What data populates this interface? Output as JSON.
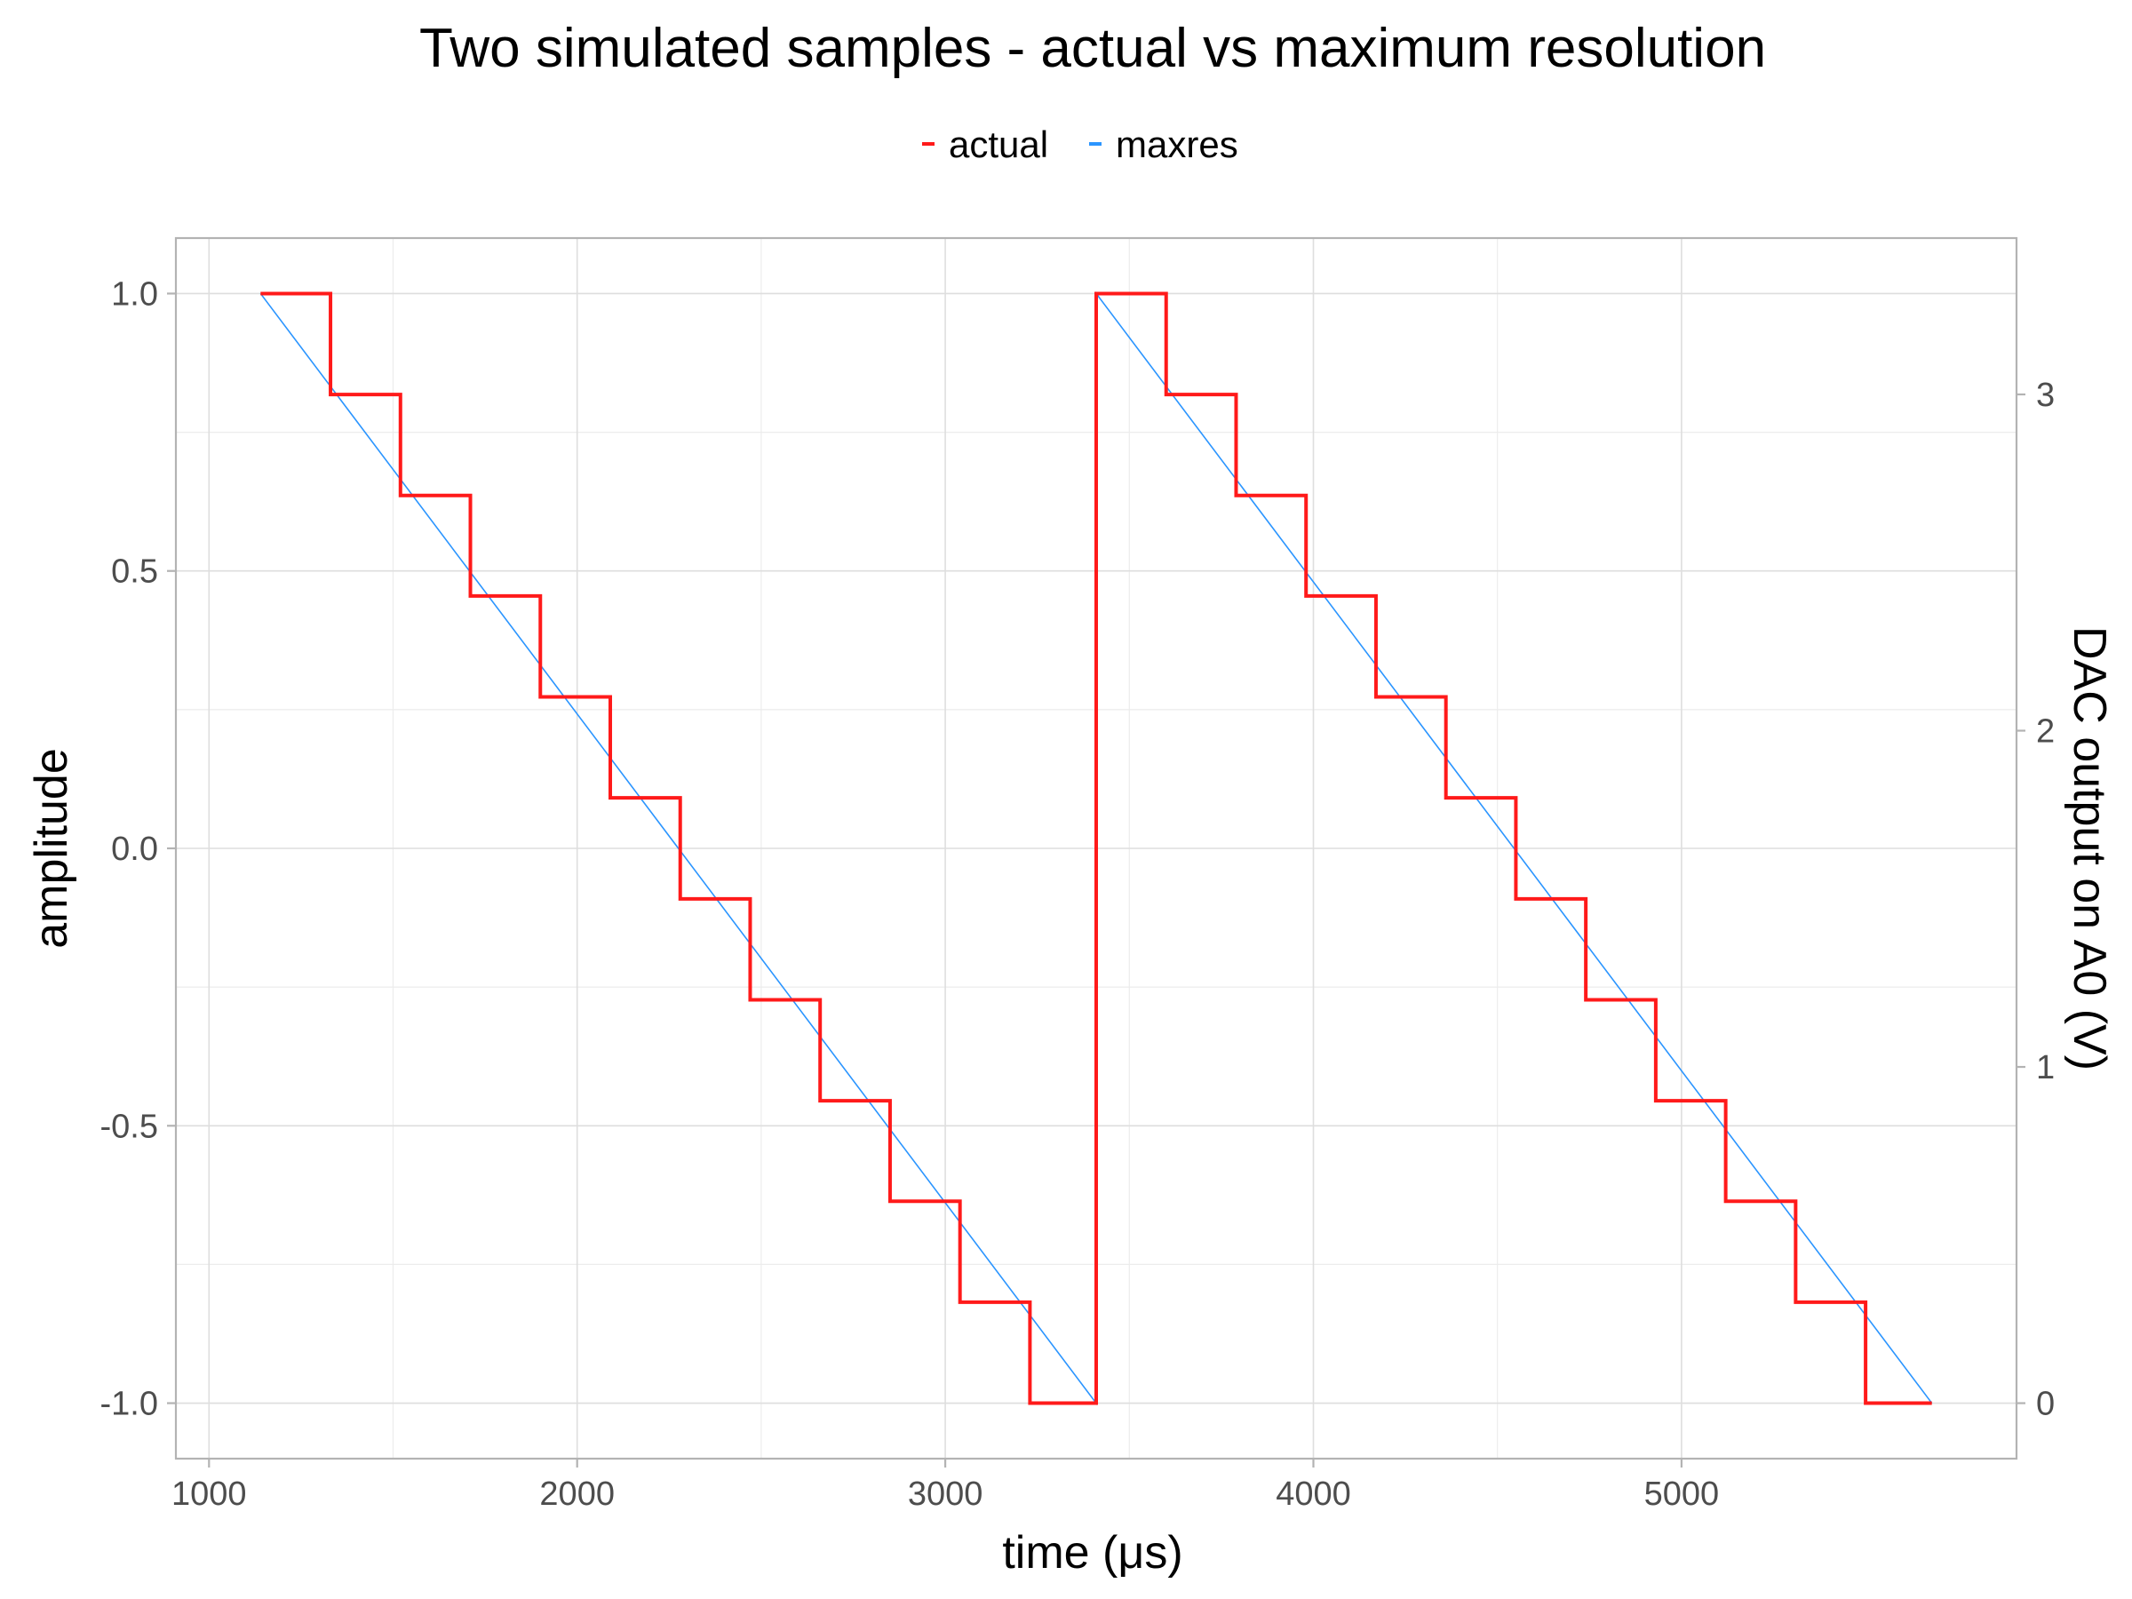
{
  "chart_data": {
    "type": "line",
    "title": "Two simulated samples - actual vs maximum resolution",
    "xlabel": "time (μs)",
    "ylabel": "amplitude",
    "ylabel_right": "DAC output on A0 (V)",
    "xlim": [
      910,
      5910
    ],
    "ylim": [
      -1.1,
      1.1
    ],
    "ylim_right_note": "secondary axis: V = 1.65 + 1.65 * amplitude",
    "x_ticks": [
      1000,
      2000,
      3000,
      4000,
      5000
    ],
    "x_tick_labels": [
      "1000",
      "2000",
      "3000",
      "4000",
      "5000"
    ],
    "y_ticks": [
      -1.0,
      -0.5,
      0.0,
      0.5,
      1.0
    ],
    "y_tick_labels": [
      "-1.0",
      "-0.5",
      "0.0",
      "0.5",
      "1.0"
    ],
    "y_right_ticks": [
      0,
      1,
      2,
      3
    ],
    "y_right_tick_labels": [
      "0",
      "1",
      "2",
      "3"
    ],
    "grid": true,
    "legend_position": "top",
    "series": [
      {
        "name": "actual",
        "color": "#ff1a1a",
        "shape": "step",
        "x": [
          1140,
          1330,
          1330,
          1520,
          1520,
          1710,
          1710,
          1900,
          1900,
          2090,
          2090,
          2280,
          2280,
          2470,
          2470,
          2660,
          2660,
          2850,
          2850,
          3040,
          3040,
          3230,
          3230,
          3410,
          3410,
          3600,
          3600,
          3790,
          3790,
          3980,
          3980,
          4170,
          4170,
          4360,
          4360,
          4550,
          4550,
          4740,
          4740,
          4930,
          4930,
          5120,
          5120,
          5310,
          5310,
          5500,
          5500,
          5680
        ],
        "y": [
          1.0,
          1.0,
          0.818,
          0.818,
          0.636,
          0.636,
          0.455,
          0.455,
          0.273,
          0.273,
          0.091,
          0.091,
          -0.091,
          -0.091,
          -0.273,
          -0.273,
          -0.455,
          -0.455,
          -0.636,
          -0.636,
          -0.818,
          -0.818,
          -1.0,
          -1.0,
          1.0,
          1.0,
          0.818,
          0.818,
          0.636,
          0.636,
          0.455,
          0.455,
          0.273,
          0.273,
          0.091,
          0.091,
          -0.091,
          -0.091,
          -0.273,
          -0.273,
          -0.455,
          -0.455,
          -0.636,
          -0.636,
          -0.818,
          -0.818,
          -1.0,
          -1.0
        ]
      },
      {
        "name": "maxres",
        "color": "#2b95ff",
        "shape": "line",
        "x": [
          1140,
          3410,
          3410,
          5680
        ],
        "y": [
          1.0,
          -1.0,
          1.0,
          -1.0
        ]
      }
    ]
  }
}
